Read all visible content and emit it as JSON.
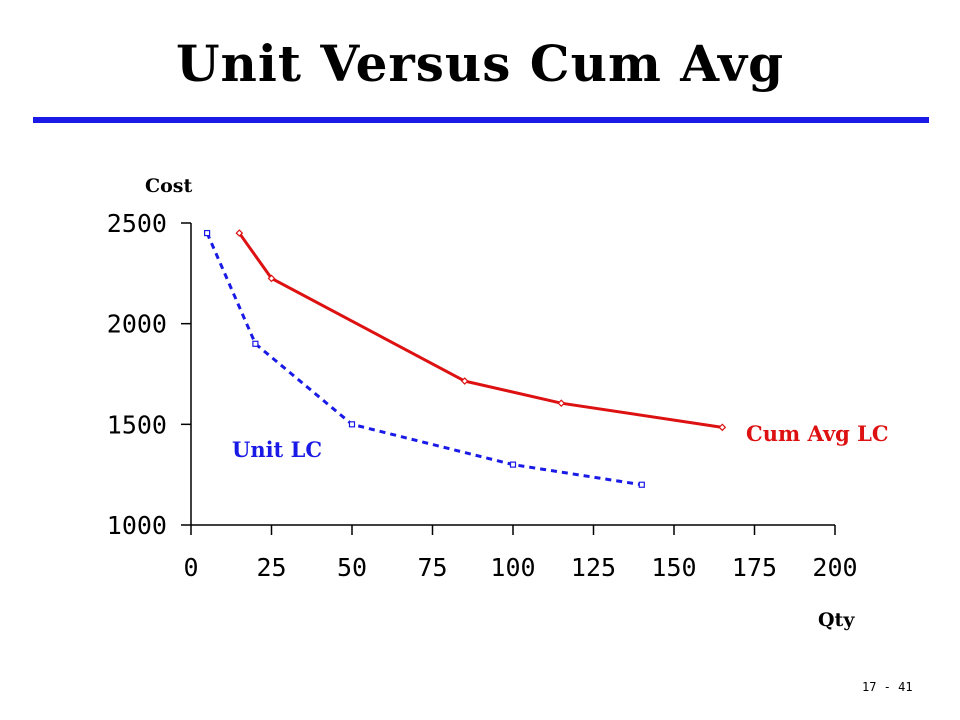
{
  "slide": {
    "title": "Unit Versus Cum Avg",
    "page_number": "17 - 41",
    "rule_color": "#1a1ae6"
  },
  "chart_data": {
    "type": "line",
    "xlabel": "Qty",
    "ylabel": "Cost",
    "xlim": [
      0,
      200
    ],
    "ylim": [
      1000,
      2500
    ],
    "x_ticks": [
      0,
      25,
      50,
      75,
      100,
      125,
      150,
      175,
      200
    ],
    "y_ticks": [
      1000,
      1500,
      2000,
      2500
    ],
    "grid": false,
    "series": [
      {
        "name": "Unit LC",
        "color": "#1a1ae6",
        "line_style": "dashed",
        "marker": "square",
        "x": [
          5,
          20,
          50,
          100,
          140
        ],
        "y": [
          2450,
          1900,
          1500,
          1300,
          1200
        ]
      },
      {
        "name": "Cum Avg LC",
        "color": "#dd1111",
        "line_style": "solid",
        "marker": "diamond",
        "x": [
          15,
          25,
          85,
          115,
          165
        ],
        "y": [
          2450,
          2225,
          1715,
          1605,
          1485
        ]
      }
    ]
  }
}
